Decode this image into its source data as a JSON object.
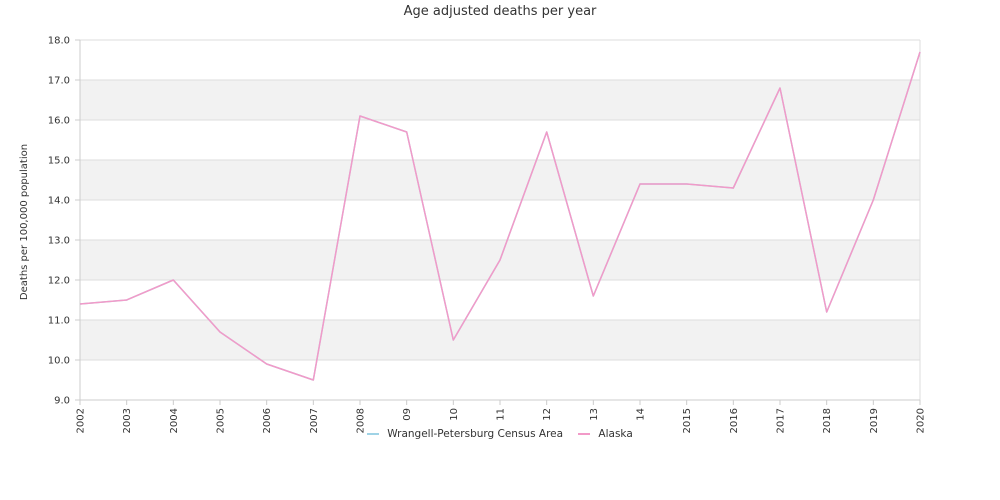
{
  "chart_data": {
    "type": "line",
    "title": "Age adjusted deaths per year",
    "xlabel": "",
    "ylabel": "Deaths per 100,000 population",
    "x": [
      "2002",
      "2003",
      "2004",
      "2005",
      "2006",
      "2007",
      "2008",
      "2009",
      "2010",
      "2011",
      "2012",
      "2013",
      "2014",
      "2015",
      "2016",
      "2017",
      "2018",
      "2019",
      "2020"
    ],
    "x_tick_labels": [
      "2002",
      "2003",
      "2004",
      "2005",
      "2006",
      "2007",
      "2008",
      "09",
      "10",
      "11",
      "12",
      "13",
      "14",
      "2015",
      "2016",
      "2017",
      "2018",
      "2019",
      "2020"
    ],
    "ylim": [
      9.0,
      18.0
    ],
    "y_ticks": [
      "9.0",
      "10.0",
      "11.0",
      "12.0",
      "13.0",
      "14.0",
      "15.0",
      "16.0",
      "17.0",
      "18.0"
    ],
    "grid": true,
    "legend_position": "bottom",
    "series": [
      {
        "name": "Wrangell-Petersburg Census Area",
        "color": "#9fd3e6",
        "values": [
          11.4,
          11.5,
          12.0,
          10.7,
          9.9,
          9.5,
          16.1,
          15.7,
          10.5,
          12.5,
          15.7,
          11.6,
          14.4,
          14.4,
          14.3,
          16.8,
          11.2,
          14.0,
          17.7
        ]
      },
      {
        "name": "Alaska",
        "color": "#f29ac8",
        "values": [
          11.4,
          11.5,
          12.0,
          10.7,
          9.9,
          9.5,
          16.1,
          15.7,
          10.5,
          12.5,
          15.7,
          11.6,
          14.4,
          14.4,
          14.3,
          16.8,
          11.2,
          14.0,
          17.7
        ]
      }
    ]
  },
  "colors": {
    "band": "#f2f2f2",
    "grid": "#dddddd",
    "axis": "#cccccc",
    "text": "#333333"
  }
}
